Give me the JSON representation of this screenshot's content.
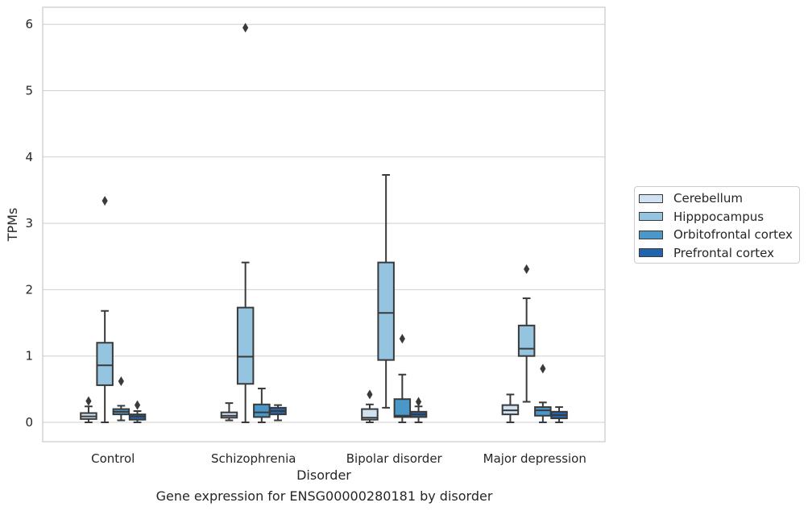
{
  "caption": "Gene expression for ENSG00000280181 by disorder",
  "chart_data": {
    "type": "boxplot",
    "xlabel": "Disorder",
    "ylabel": "TPMs",
    "ylim": [
      -0.3,
      6.25
    ],
    "yticks": [
      0,
      1,
      2,
      3,
      4,
      5,
      6
    ],
    "grid": "horizontal",
    "legend_position": "right",
    "categories": [
      "Control",
      "Schizophrenia",
      "Bipolar disorder",
      "Major depression"
    ],
    "series": [
      {
        "name": "Cerebellum",
        "color": "#d0e1f2",
        "boxes": [
          {
            "lo": 0.0,
            "q1": 0.05,
            "med": 0.09,
            "q3": 0.14,
            "hi": 0.24,
            "outliers": [
              0.32
            ]
          },
          {
            "lo": 0.03,
            "q1": 0.07,
            "med": 0.1,
            "q3": 0.15,
            "hi": 0.29,
            "outliers": []
          },
          {
            "lo": 0.0,
            "q1": 0.04,
            "med": 0.07,
            "q3": 0.2,
            "hi": 0.27,
            "outliers": [
              0.42
            ]
          },
          {
            "lo": 0.0,
            "q1": 0.12,
            "med": 0.18,
            "q3": 0.26,
            "hi": 0.42,
            "outliers": []
          }
        ]
      },
      {
        "name": "Hipppocampus",
        "color": "#94c4df",
        "boxes": [
          {
            "lo": 0.0,
            "q1": 0.56,
            "med": 0.86,
            "q3": 1.2,
            "hi": 1.68,
            "outliers": [
              3.34
            ]
          },
          {
            "lo": 0.0,
            "q1": 0.58,
            "med": 0.99,
            "q3": 1.73,
            "hi": 2.41,
            "outliers": [
              5.95
            ]
          },
          {
            "lo": 0.22,
            "q1": 0.94,
            "med": 1.65,
            "q3": 2.41,
            "hi": 3.73,
            "outliers": []
          },
          {
            "lo": 0.31,
            "q1": 1.0,
            "med": 1.11,
            "q3": 1.46,
            "hi": 1.87,
            "outliers": [
              2.31
            ]
          }
        ]
      },
      {
        "name": "Orbitofrontal cortex",
        "color": "#4a98c9",
        "boxes": [
          {
            "lo": 0.03,
            "q1": 0.12,
            "med": 0.16,
            "q3": 0.2,
            "hi": 0.25,
            "outliers": [
              0.62
            ]
          },
          {
            "lo": 0.0,
            "q1": 0.08,
            "med": 0.15,
            "q3": 0.27,
            "hi": 0.51,
            "outliers": []
          },
          {
            "lo": 0.0,
            "q1": 0.08,
            "med": 0.1,
            "q3": 0.35,
            "hi": 0.72,
            "outliers": [
              1.26
            ]
          },
          {
            "lo": 0.0,
            "q1": 0.1,
            "med": 0.18,
            "q3": 0.23,
            "hi": 0.3,
            "outliers": [
              0.81
            ]
          }
        ]
      },
      {
        "name": "Prefrontal cortex",
        "color": "#2164ab",
        "boxes": [
          {
            "lo": 0.0,
            "q1": 0.04,
            "med": 0.09,
            "q3": 0.12,
            "hi": 0.17,
            "outliers": [
              0.26
            ]
          },
          {
            "lo": 0.03,
            "q1": 0.12,
            "med": 0.17,
            "q3": 0.22,
            "hi": 0.26,
            "outliers": []
          },
          {
            "lo": 0.0,
            "q1": 0.08,
            "med": 0.12,
            "q3": 0.16,
            "hi": 0.24,
            "outliers": [
              0.31
            ]
          },
          {
            "lo": 0.0,
            "q1": 0.06,
            "med": 0.11,
            "q3": 0.16,
            "hi": 0.23,
            "outliers": []
          }
        ]
      }
    ]
  }
}
